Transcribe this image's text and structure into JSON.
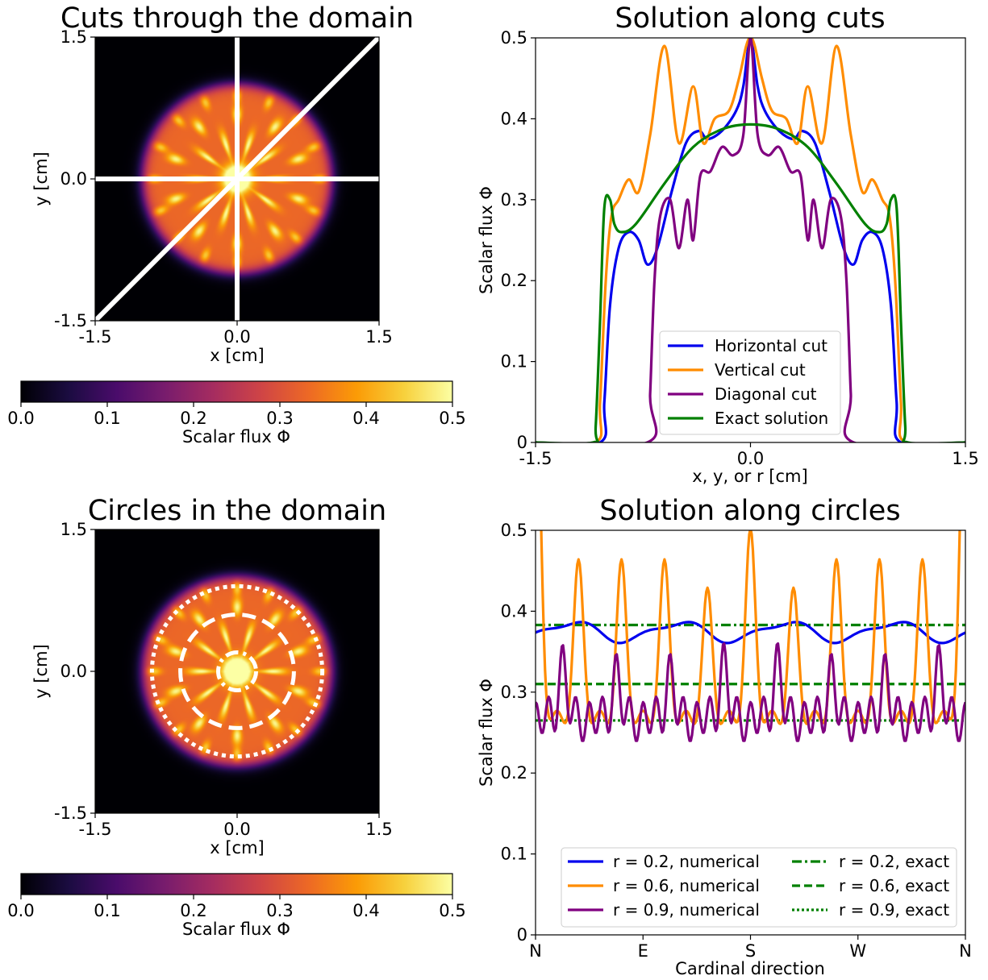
{
  "colors": {
    "colormap": [
      "#000004",
      "#1b0c41",
      "#4a0c6b",
      "#781c6d",
      "#a52c60",
      "#cf4446",
      "#ed6925",
      "#fb9b06",
      "#f7d13d",
      "#fcffa4"
    ],
    "horizontal": "#0000ee",
    "vertical": "#ff8c00",
    "diagonal": "#800080",
    "exact": "#008000",
    "overlay": "#ffffff"
  },
  "chart_data": [
    {
      "type": "heatmap",
      "title": "Cuts through the domain",
      "xlabel": "x [cm]",
      "ylabel": "y [cm]",
      "xlim": [
        -1.5,
        1.5
      ],
      "ylim": [
        -1.5,
        1.5
      ],
      "xticks": [
        "-1.5",
        "0.0",
        "1.5"
      ],
      "yticks": [
        "-1.5",
        "0.0",
        "1.5"
      ],
      "disk_radius": 1.0,
      "overlay_lines": [
        "horizontal cut y=0",
        "vertical cut x=0",
        "diagonal cut y=x"
      ],
      "colorbar": {
        "label": "Scalar flux Φ",
        "range": [
          0,
          0.5
        ],
        "ticks": [
          "0.0",
          "0.1",
          "0.2",
          "0.3",
          "0.4",
          "0.5"
        ]
      }
    },
    {
      "type": "line",
      "title": "Solution along cuts",
      "xlabel": "x, y, or r [cm]",
      "ylabel": "Scalar flux Φ",
      "xlim": [
        -1.5,
        1.5
      ],
      "ylim": [
        0,
        0.5
      ],
      "xticks": [
        "-1.5",
        "0.0",
        "1.5"
      ],
      "yticks": [
        "0",
        "0.1",
        "0.2",
        "0.3",
        "0.4",
        "0.5"
      ],
      "legend": "lower-center",
      "series": [
        {
          "name": "Horizontal cut",
          "x": [
            -1.5,
            -1.05,
            -1.02,
            -0.98,
            -0.92,
            -0.85,
            -0.78,
            -0.72,
            -0.65,
            -0.55,
            -0.45,
            -0.36,
            -0.3,
            -0.2,
            -0.1,
            -0.05,
            0.0,
            0.05,
            0.1,
            0.2,
            0.3,
            0.36,
            0.45,
            0.55,
            0.65,
            0.72,
            0.78,
            0.85,
            0.92,
            0.98,
            1.02,
            1.05,
            1.5
          ],
          "y": [
            0,
            0,
            0.05,
            0.17,
            0.24,
            0.26,
            0.25,
            0.22,
            0.24,
            0.31,
            0.37,
            0.385,
            0.375,
            0.385,
            0.41,
            0.44,
            0.5,
            0.44,
            0.41,
            0.385,
            0.375,
            0.385,
            0.37,
            0.31,
            0.24,
            0.22,
            0.25,
            0.26,
            0.24,
            0.17,
            0.05,
            0,
            0
          ]
        },
        {
          "name": "Vertical cut",
          "x": [
            -1.5,
            -1.08,
            -1.05,
            -1.01,
            -0.97,
            -0.92,
            -0.85,
            -0.78,
            -0.7,
            -0.6,
            -0.5,
            -0.4,
            -0.33,
            -0.25,
            -0.15,
            -0.08,
            -0.03,
            0.0,
            0.03,
            0.08,
            0.15,
            0.25,
            0.33,
            0.4,
            0.5,
            0.6,
            0.7,
            0.78,
            0.85,
            0.92,
            0.97,
            1.01,
            1.05,
            1.08,
            1.5
          ],
          "y": [
            0,
            0,
            0.05,
            0.2,
            0.28,
            0.3,
            0.325,
            0.31,
            0.38,
            0.49,
            0.37,
            0.44,
            0.37,
            0.4,
            0.41,
            0.45,
            0.49,
            0.5,
            0.49,
            0.45,
            0.41,
            0.4,
            0.37,
            0.44,
            0.37,
            0.49,
            0.38,
            0.31,
            0.325,
            0.3,
            0.28,
            0.2,
            0.05,
            0,
            0
          ]
        },
        {
          "name": "Diagonal cut",
          "x": [
            -1.5,
            -0.72,
            -0.7,
            -0.67,
            -0.63,
            -0.56,
            -0.5,
            -0.44,
            -0.4,
            -0.35,
            -0.28,
            -0.2,
            -0.12,
            -0.05,
            0.0,
            0.05,
            0.12,
            0.2,
            0.28,
            0.35,
            0.4,
            0.44,
            0.5,
            0.56,
            0.63,
            0.67,
            0.7,
            0.72,
            1.5
          ],
          "y": [
            0,
            0,
            0.06,
            0.2,
            0.28,
            0.3,
            0.24,
            0.3,
            0.25,
            0.33,
            0.335,
            0.365,
            0.355,
            0.38,
            0.5,
            0.38,
            0.355,
            0.365,
            0.335,
            0.33,
            0.25,
            0.3,
            0.24,
            0.3,
            0.28,
            0.2,
            0.06,
            0,
            0
          ]
        },
        {
          "name": "Exact solution",
          "x": [
            -1.5,
            -1.1,
            -1.08,
            -1.05,
            -1.02,
            -0.98,
            -0.95,
            -0.9,
            -0.8,
            -0.6,
            -0.4,
            -0.2,
            0.0,
            0.2,
            0.4,
            0.6,
            0.8,
            0.9,
            0.95,
            0.98,
            1.02,
            1.05,
            1.08,
            1.1,
            1.5
          ],
          "y": [
            0,
            0,
            0.02,
            0.15,
            0.29,
            0.3,
            0.27,
            0.26,
            0.27,
            0.32,
            0.365,
            0.387,
            0.393,
            0.387,
            0.365,
            0.32,
            0.27,
            0.26,
            0.27,
            0.3,
            0.29,
            0.15,
            0.02,
            0,
            0
          ]
        }
      ]
    },
    {
      "type": "heatmap",
      "title": "Circles in the domain",
      "xlabel": "x [cm]",
      "ylabel": "y [cm]",
      "xlim": [
        -1.5,
        1.5
      ],
      "ylim": [
        -1.5,
        1.5
      ],
      "xticks": [
        "-1.5",
        "0.0",
        "1.5"
      ],
      "yticks": [
        "-1.5",
        "0.0",
        "1.5"
      ],
      "disk_radius": 1.0,
      "overlay_circles": [
        {
          "r": 0.2,
          "style": "dashdot"
        },
        {
          "r": 0.6,
          "style": "dashed"
        },
        {
          "r": 0.9,
          "style": "dotted"
        }
      ],
      "colorbar": {
        "label": "Scalar flux Φ",
        "range": [
          0,
          0.5
        ],
        "ticks": [
          "0.0",
          "0.1",
          "0.2",
          "0.3",
          "0.4",
          "0.5"
        ]
      }
    },
    {
      "type": "line",
      "title": "Solution along circles",
      "xlabel": "Cardinal direction",
      "ylabel": "Scalar flux Φ",
      "ylim": [
        0,
        0.5
      ],
      "categories": [
        "N",
        "E",
        "S",
        "W",
        "N"
      ],
      "yticks": [
        "0",
        "0.1",
        "0.2",
        "0.3",
        "0.4",
        "0.5"
      ],
      "legend": "lower-center, 2 columns",
      "series": [
        {
          "name": "r = 0.2, numerical",
          "r": 0.2,
          "mean": 0.375,
          "amplitude": 0.014,
          "cycles": 4,
          "phase": 0
        },
        {
          "name": "r = 0.6, numerical",
          "r": 0.6,
          "baseline": 0.265,
          "peak_angles_deg": [
            0,
            36,
            72,
            108,
            144,
            180,
            216,
            252,
            288,
            324,
            360
          ],
          "peak_values": [
            0.49,
            0.452,
            0.452,
            0.452,
            0.417,
            0.49,
            0.417,
            0.452,
            0.452,
            0.452,
            0.49
          ]
        },
        {
          "name": "r = 0.9, numerical",
          "r": 0.9,
          "baseline": 0.25,
          "peak_angles_deg": [
            22.5,
            67.5,
            112.5,
            157.5,
            202.5,
            247.5,
            292.5,
            337.5
          ],
          "peak_values": [
            0.345,
            0.33,
            0.33,
            0.348,
            0.348,
            0.33,
            0.33,
            0.345
          ],
          "secondary_peak": 0.305
        },
        {
          "name": "r = 0.2, exact",
          "r": 0.2,
          "value": 0.383,
          "style": "dashdot"
        },
        {
          "name": "r = 0.6, exact",
          "r": 0.6,
          "value": 0.31,
          "style": "dashed"
        },
        {
          "name": "r = 0.9, exact",
          "r": 0.9,
          "value": 0.265,
          "style": "dotted"
        }
      ]
    }
  ]
}
